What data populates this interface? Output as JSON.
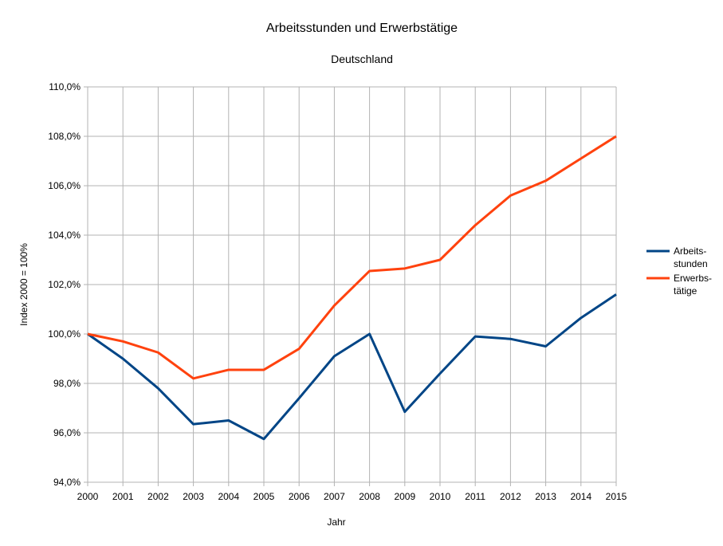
{
  "chart_data": {
    "type": "line",
    "title": "Arbeitsstunden und Erwerbstätige",
    "subtitle": "Deutschland",
    "xlabel": "Jahr",
    "ylabel": "Index 2000 = 100%",
    "ylim": [
      94,
      110
    ],
    "yticks": [
      "94,0%",
      "96,0%",
      "98,0%",
      "100,0%",
      "102,0%",
      "104,0%",
      "106,0%",
      "108,0%",
      "110,0%"
    ],
    "ytick_values": [
      94,
      96,
      98,
      100,
      102,
      104,
      106,
      108,
      110
    ],
    "grid": true,
    "legend_position": "right",
    "x": [
      "2000",
      "2001",
      "2002",
      "2003",
      "2004",
      "2005",
      "2006",
      "2007",
      "2008",
      "2009",
      "2010",
      "2011",
      "2012",
      "2013",
      "2014",
      "2015"
    ],
    "series": [
      {
        "name": "Arbeits-stunden",
        "legend_lines": [
          "Arbeits-",
          "stunden"
        ],
        "color": "#004586",
        "values": [
          100.0,
          99.0,
          97.8,
          96.35,
          96.5,
          95.75,
          97.4,
          99.1,
          100.0,
          96.85,
          98.4,
          99.9,
          99.8,
          99.5,
          100.65,
          101.6
        ]
      },
      {
        "name": "Erwerbs-tätige",
        "legend_lines": [
          "Erwerbs-",
          "tätige"
        ],
        "color": "#ff420e",
        "values": [
          100.0,
          99.7,
          99.25,
          98.2,
          98.55,
          98.55,
          99.4,
          101.15,
          102.55,
          102.65,
          103.0,
          104.4,
          105.6,
          106.2,
          107.1,
          108.0
        ]
      }
    ]
  }
}
